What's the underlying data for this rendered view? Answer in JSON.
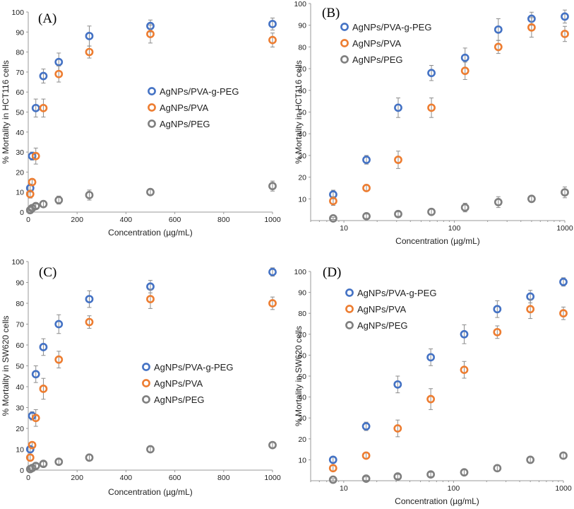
{
  "series_styles": {
    "AgNPs/PVA-g-PEG": "#4472c4",
    "AgNPs/PVA": "#ed7d31",
    "AgNPs/PEG": "#7f7f7f"
  },
  "chart_data": [
    {
      "type": "scatter",
      "panel": "(A)",
      "xscale": "linear",
      "xlabel": "Concentration (µg/mL)",
      "ylabel": "% Mortality in HCT116 cells",
      "xlim": [
        0,
        1000
      ],
      "ylim": [
        0,
        100
      ],
      "xticks": [
        0,
        200,
        400,
        600,
        800,
        1000
      ],
      "yticks": [
        0,
        10,
        20,
        30,
        40,
        50,
        60,
        70,
        80,
        90,
        100
      ],
      "legend_position": "center",
      "series": [
        {
          "name": "AgNPs/PVA-g-PEG",
          "x": [
            8,
            16,
            31,
            62,
            125,
            250,
            500,
            1000
          ],
          "y": [
            12,
            28,
            52,
            68,
            75,
            88,
            93,
            94
          ],
          "err": [
            2,
            2,
            4.5,
            3.5,
            4.5,
            5,
            3,
            3
          ]
        },
        {
          "name": "AgNPs/PVA",
          "x": [
            8,
            16,
            31,
            62,
            125,
            250,
            500,
            1000
          ],
          "y": [
            9,
            15,
            28,
            52,
            69,
            80,
            89,
            86
          ],
          "err": [
            2,
            1.5,
            4,
            4.5,
            4,
            3,
            4.5,
            3.5
          ]
        },
        {
          "name": "AgNPs/PEG",
          "x": [
            8,
            16,
            31,
            62,
            125,
            250,
            500,
            1000
          ],
          "y": [
            1,
            2,
            3,
            4,
            6,
            8.5,
            10,
            13
          ],
          "err": [
            0.5,
            1,
            1,
            1.5,
            2,
            2.5,
            1.5,
            2.5
          ]
        }
      ]
    },
    {
      "type": "scatter",
      "panel": "(B)",
      "xscale": "log",
      "xlabel": "Concentration (µg/mL)",
      "ylabel": "% Mortality in HCT116 cells",
      "xlim": [
        5,
        1000
      ],
      "ylim": [
        0,
        100
      ],
      "xticks": [
        10,
        100,
        1000
      ],
      "yticks": [
        10,
        20,
        30,
        40,
        50,
        60,
        70,
        80,
        90,
        100
      ],
      "legend_position": "top-left",
      "series": [
        {
          "name": "AgNPs/PVA-g-PEG",
          "x": [
            8,
            16,
            31,
            62,
            125,
            250,
            500,
            1000
          ],
          "y": [
            12,
            28,
            52,
            68,
            75,
            88,
            93,
            94
          ],
          "err": [
            2,
            2,
            4.5,
            3.5,
            4.5,
            5,
            3,
            3
          ]
        },
        {
          "name": "AgNPs/PVA",
          "x": [
            8,
            16,
            31,
            62,
            125,
            250,
            500,
            1000
          ],
          "y": [
            9,
            15,
            28,
            52,
            69,
            80,
            89,
            86
          ],
          "err": [
            2,
            1.5,
            4,
            4.5,
            4,
            3,
            4.5,
            3.5
          ]
        },
        {
          "name": "AgNPs/PEG",
          "x": [
            8,
            16,
            31,
            62,
            125,
            250,
            500,
            1000
          ],
          "y": [
            1,
            2,
            3,
            4,
            6,
            8.5,
            10,
            13
          ],
          "err": [
            0.5,
            1,
            1,
            1.5,
            2,
            2.5,
            1.5,
            2.5
          ]
        }
      ]
    },
    {
      "type": "scatter",
      "panel": "(C)",
      "xscale": "linear",
      "xlabel": "Concentration (µg/mL)",
      "ylabel": "% Mortality in SW620 cells",
      "xlim": [
        0,
        1000
      ],
      "ylim": [
        0,
        100
      ],
      "xticks": [
        0,
        200,
        400,
        600,
        800,
        1000
      ],
      "yticks": [
        0,
        10,
        20,
        30,
        40,
        50,
        60,
        70,
        80,
        90,
        100
      ],
      "legend_position": "center-right",
      "series": [
        {
          "name": "AgNPs/PVA-g-PEG",
          "x": [
            8,
            16,
            31,
            62,
            125,
            250,
            500,
            1000
          ],
          "y": [
            10,
            26,
            46,
            59,
            70,
            82,
            88,
            95
          ],
          "err": [
            1.5,
            2,
            4,
            4,
            4.5,
            4,
            3,
            2
          ]
        },
        {
          "name": "AgNPs/PVA",
          "x": [
            8,
            16,
            31,
            62,
            125,
            250,
            500,
            1000
          ],
          "y": [
            6,
            12,
            25,
            39,
            53,
            71,
            82,
            80
          ],
          "err": [
            1.5,
            1.5,
            4,
            5,
            4,
            3,
            4.5,
            3
          ]
        },
        {
          "name": "AgNPs/PEG",
          "x": [
            8,
            16,
            31,
            62,
            125,
            250,
            500,
            1000
          ],
          "y": [
            0.5,
            1,
            2,
            3,
            4,
            6,
            10,
            12
          ],
          "err": [
            0.5,
            0.8,
            1,
            1,
            1.2,
            1.5,
            1.5,
            1.5
          ]
        }
      ]
    },
    {
      "type": "scatter",
      "panel": "(D)",
      "xscale": "log",
      "xlabel": "Concentration (µg/mL)",
      "ylabel": "% Mortality in SW620 cells",
      "xlim": [
        5,
        1000
      ],
      "ylim": [
        0,
        100
      ],
      "xticks": [
        10,
        100,
        1000
      ],
      "yticks": [
        10,
        20,
        30,
        40,
        50,
        60,
        70,
        80,
        90,
        100
      ],
      "legend_position": "top-left",
      "series": [
        {
          "name": "AgNPs/PVA-g-PEG",
          "x": [
            8,
            16,
            31,
            62,
            125,
            250,
            500,
            1000
          ],
          "y": [
            10,
            26,
            46,
            59,
            70,
            82,
            88,
            95
          ],
          "err": [
            1.5,
            2,
            4,
            4,
            4.5,
            4,
            3,
            2
          ]
        },
        {
          "name": "AgNPs/PVA",
          "x": [
            8,
            16,
            31,
            62,
            125,
            250,
            500,
            1000
          ],
          "y": [
            6,
            12,
            25,
            39,
            53,
            71,
            82,
            80
          ],
          "err": [
            1.5,
            1.5,
            4,
            5,
            4,
            3,
            4.5,
            3
          ]
        },
        {
          "name": "AgNPs/PEG",
          "x": [
            8,
            16,
            31,
            62,
            125,
            250,
            500,
            1000
          ],
          "y": [
            0.5,
            1,
            2,
            3,
            4,
            6,
            10,
            12
          ],
          "err": [
            0.5,
            0.8,
            1,
            1,
            1.2,
            1.5,
            1.5,
            1.5
          ]
        }
      ]
    }
  ]
}
